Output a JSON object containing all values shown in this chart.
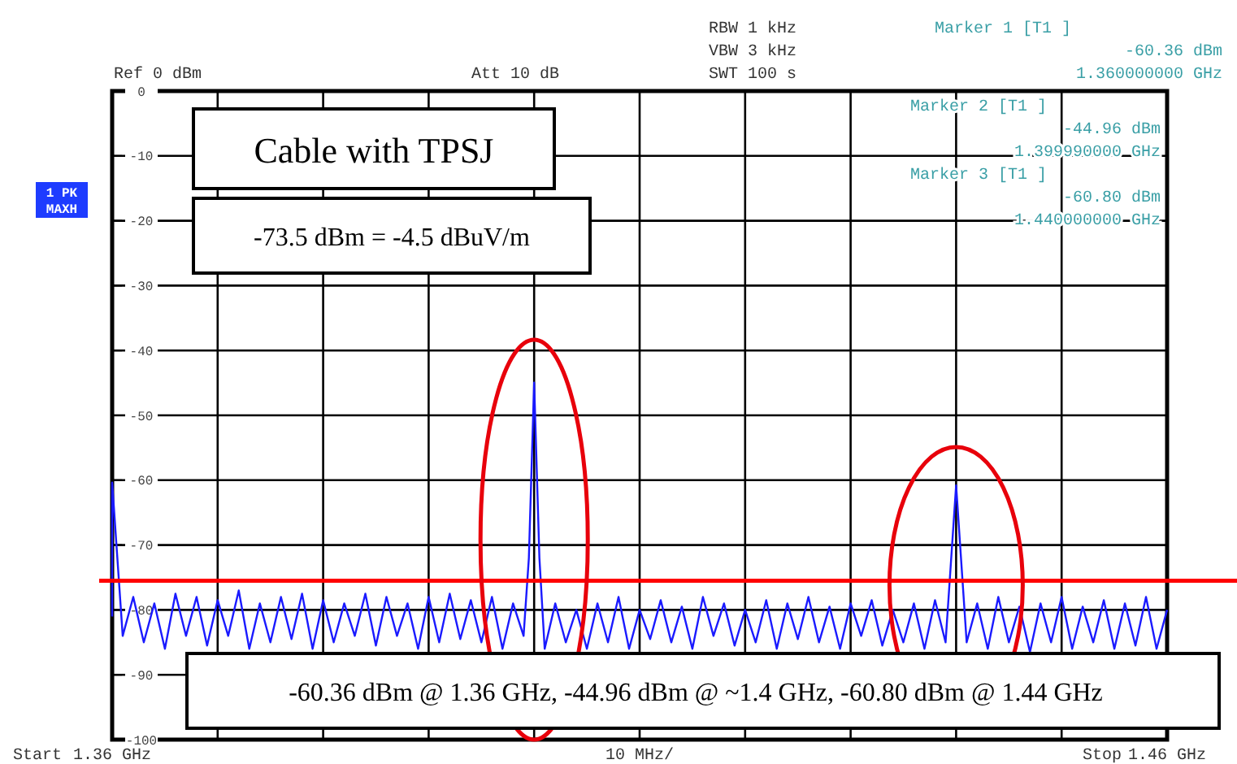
{
  "chart_data": {
    "type": "line",
    "xlim": [
      1.36,
      1.46
    ],
    "ylim": [
      -100,
      0
    ],
    "xticks": [
      {
        "value": 1.36,
        "label": "1.36 GHz"
      },
      {
        "value": 1.37,
        "label": null
      },
      {
        "value": 1.38,
        "label": null
      },
      {
        "value": 1.39,
        "label": null
      },
      {
        "value": 1.4,
        "label": null
      },
      {
        "value": 1.41,
        "label": null
      },
      {
        "value": 1.42,
        "label": null
      },
      {
        "value": 1.43,
        "label": null
      },
      {
        "value": 1.44,
        "label": null
      },
      {
        "value": 1.45,
        "label": null
      },
      {
        "value": 1.46,
        "label": "1.46 GHz"
      }
    ],
    "xlabel": "10 MHz/",
    "yticks": [
      0,
      -10,
      -20,
      -30,
      -40,
      -50,
      -60,
      -70,
      -80,
      -90,
      -100
    ],
    "grid": true,
    "marker": "none",
    "line_style": "solid",
    "ref_lines": [
      {
        "axis": "y",
        "value": -75.5,
        "color": "#ff0000"
      }
    ],
    "annotations": [
      "Ref 0 dBm",
      "Att 10 dB",
      "RBW 1 kHz",
      "VBW 3 kHz",
      "SWT 100 s",
      "Marker 1 [T1 ]",
      "-60.36 dBm",
      "1.360000000 GHz",
      "Marker 2 [T1 ]",
      "-44.96 dBm",
      "1.399990000 GHz",
      "Marker 3 [T1 ]",
      "-60.80 dBm",
      "1.440000000 GHz",
      "1 PK",
      "MAXH",
      "Cable with TPSJ",
      "-73.5 dBm = -4.5 dBuV/m",
      "-60.36 dBm @ 1.36 GHz, -44.96 dBm @ ~1.4 GHz, -60.80 dBm @ 1.44 GHz",
      "Start",
      "Stop"
    ],
    "series": [
      {
        "color": "#1a1aff",
        "x": [
          1.36,
          1.36,
          1.361,
          1.362,
          1.363,
          1.364,
          1.365,
          1.366,
          1.367,
          1.368,
          1.369,
          1.37,
          1.371,
          1.372,
          1.373,
          1.374,
          1.375,
          1.376,
          1.377,
          1.378,
          1.379,
          1.38,
          1.381,
          1.382,
          1.383,
          1.384,
          1.385,
          1.386,
          1.387,
          1.388,
          1.389,
          1.39,
          1.391,
          1.392,
          1.393,
          1.394,
          1.395,
          1.396,
          1.397,
          1.398,
          1.399,
          1.3995,
          1.4,
          1.4005,
          1.401,
          1.402,
          1.403,
          1.404,
          1.405,
          1.406,
          1.407,
          1.408,
          1.409,
          1.41,
          1.411,
          1.412,
          1.413,
          1.414,
          1.415,
          1.416,
          1.417,
          1.418,
          1.419,
          1.42,
          1.421,
          1.422,
          1.423,
          1.424,
          1.425,
          1.426,
          1.427,
          1.428,
          1.429,
          1.43,
          1.431,
          1.432,
          1.433,
          1.434,
          1.435,
          1.436,
          1.437,
          1.438,
          1.439,
          1.44,
          1.441,
          1.442,
          1.443,
          1.444,
          1.445,
          1.446,
          1.447,
          1.448,
          1.449,
          1.45,
          1.451,
          1.452,
          1.453,
          1.454,
          1.455,
          1.456,
          1.457,
          1.458,
          1.459,
          1.46
        ],
        "values": [
          -81,
          -60.36,
          -84,
          -78,
          -85,
          -79,
          -86,
          -77.5,
          -84,
          -78,
          -85.5,
          -78.5,
          -84,
          -77,
          -86,
          -79,
          -85,
          -78,
          -84.5,
          -77.5,
          -86,
          -78.5,
          -85,
          -79,
          -84,
          -77.5,
          -85.5,
          -78,
          -84,
          -79,
          -86,
          -78,
          -85,
          -77.5,
          -84.5,
          -78.5,
          -85,
          -78,
          -86,
          -79,
          -84,
          -72,
          -44.96,
          -72,
          -86,
          -79,
          -85,
          -80,
          -86,
          -79,
          -85,
          -78,
          -86,
          -80,
          -84.5,
          -78.5,
          -85,
          -79.5,
          -86,
          -78,
          -84,
          -79,
          -85.5,
          -80,
          -85,
          -78.5,
          -86,
          -79,
          -84.5,
          -78,
          -85,
          -79.5,
          -86,
          -79,
          -84,
          -78.5,
          -85.5,
          -80,
          -85,
          -79,
          -86,
          -78.5,
          -85,
          -60.8,
          -85,
          -79,
          -86,
          -78,
          -85,
          -79.5,
          -86.5,
          -79,
          -85,
          -78,
          -86,
          -79.5,
          -85,
          -78.5,
          -86,
          -79,
          -85.5,
          -78,
          -86,
          -80
        ]
      }
    ]
  }
}
